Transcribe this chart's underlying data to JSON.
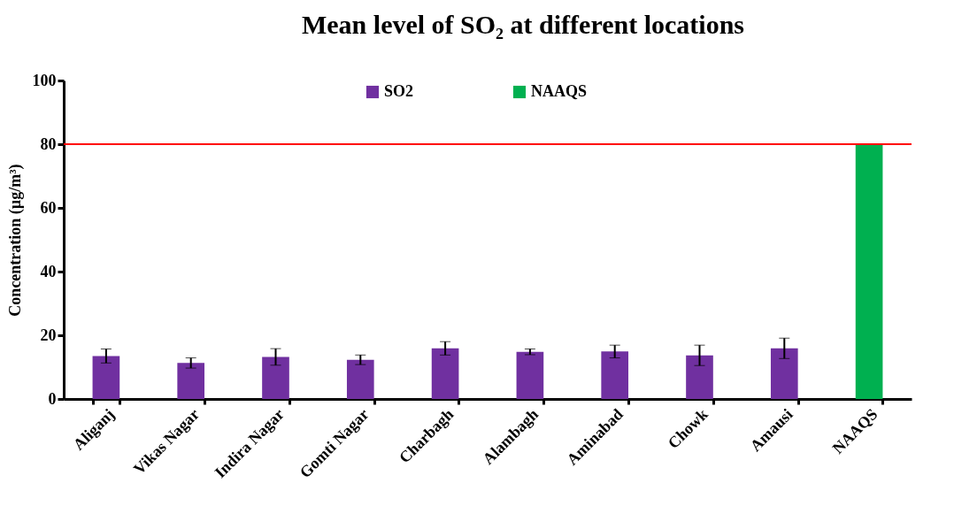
{
  "chart_data": {
    "type": "bar",
    "title": "Mean level of SO₂ at different locations",
    "ylabel": "Concentration (µg/m³)",
    "categories": [
      "Aliganj",
      "Vikas Nagar",
      "Indira Nagar",
      "Gomti Nagar",
      "Charbagh",
      "Alambagh",
      "Aminabad",
      "Chowk",
      "Amausi",
      "NAAQS"
    ],
    "series": [
      {
        "name": "SO2",
        "color": "#7030a0",
        "values": [
          13.5,
          11.3,
          13.2,
          12.3,
          15.9,
          14.8,
          14.9,
          13.7,
          15.9,
          null
        ],
        "errors": [
          2.2,
          1.6,
          2.6,
          1.5,
          2.1,
          0.9,
          2.0,
          3.2,
          3.2,
          null
        ]
      },
      {
        "name": "NAAQS",
        "color": "#00b050",
        "values": [
          null,
          null,
          null,
          null,
          null,
          null,
          null,
          null,
          null,
          80
        ]
      }
    ],
    "ylim": [
      0,
      100
    ],
    "yticks": [
      0,
      20,
      40,
      60,
      80,
      100
    ],
    "grid": false,
    "legend": "top",
    "ref_lines": [
      {
        "axis": "y",
        "value": 80,
        "color": "#ff0000"
      }
    ]
  }
}
